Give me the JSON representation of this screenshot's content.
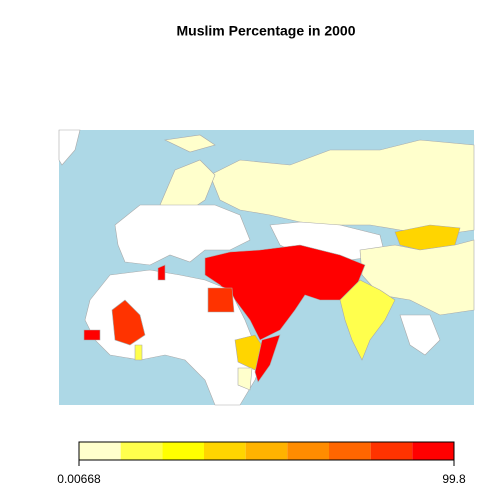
{
  "title": "Muslim Percentage in 2000",
  "legend": {
    "colors": [
      "#FFFFCC",
      "#FFFF4D",
      "#FFFF00",
      "#FFD500",
      "#FFB300",
      "#FF8C00",
      "#FF6600",
      "#FF3300",
      "#FF0000"
    ],
    "min": 0.00668,
    "max": 99.8
  }
}
